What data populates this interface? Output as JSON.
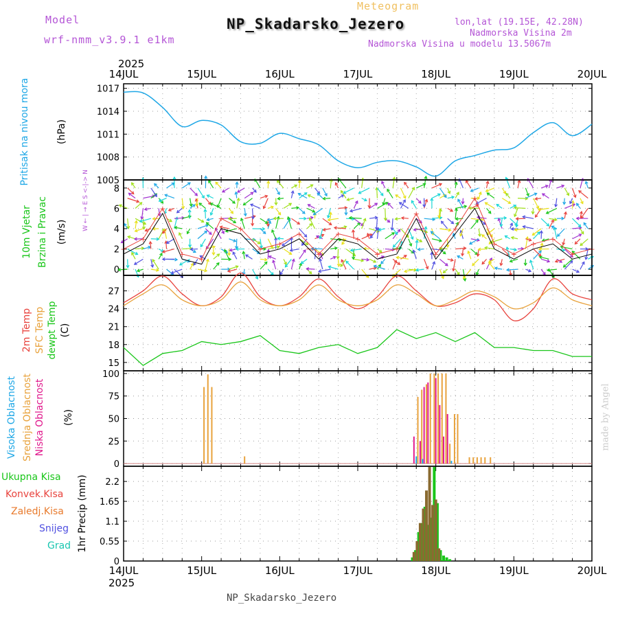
{
  "header": {
    "meteogram": "Meteogram",
    "station": "NP_Skadarsko_Jezero",
    "model_label": "Model",
    "model_name": "wrf-nmm_v3.9.1 e1km",
    "lonlat": "lon,lat (19.15E, 42.28N)",
    "elevation": "Nadmorska Visina 2m",
    "model_elevation": "Nadmorska Visina u modelu 13.5067m",
    "credit": "made by Angel",
    "footer": "NP_Skadarsko_Jezero"
  },
  "time_axis": {
    "year": "2025",
    "ticks": [
      "14JUL",
      "15JUL",
      "16JUL",
      "17JUL",
      "18JUL",
      "19JUL",
      "20JUL"
    ]
  },
  "colors": {
    "pressure": "#1ea7e6",
    "temp2m": "#e8423c",
    "sfctemp": "#e8a23c",
    "dewpt": "#19c619",
    "high_cloud": "#1ea7e6",
    "mid_cloud": "#e8a23c",
    "low_cloud": "#e0198c",
    "total_precip": "#19c619",
    "conv_precip": "#e8423c",
    "frozen_precip": "#e87a2c",
    "snow": "#5050e0",
    "hail": "#19c6b0"
  },
  "chart_data": [
    {
      "type": "line",
      "name": "pressure",
      "ylabel_main": "Pritisak na nivou mora",
      "ylabel_unit": "(hPa)",
      "ylim": [
        1005,
        1017.6
      ],
      "yticks": [
        1005,
        1008,
        1011,
        1014,
        1017
      ],
      "x": [
        0,
        0.25,
        0.5,
        0.75,
        1.0,
        1.25,
        1.5,
        1.75,
        2.0,
        2.25,
        2.5,
        2.75,
        3.0,
        3.25,
        3.5,
        3.75,
        4.0,
        4.25,
        4.5,
        4.75,
        5.0,
        5.25,
        5.5,
        5.75,
        6.0
      ],
      "values": [
        1016.5,
        1016.4,
        1014.5,
        1012.0,
        1012.8,
        1012.2,
        1010.0,
        1009.8,
        1011.1,
        1010.4,
        1009.6,
        1007.5,
        1006.6,
        1007.3,
        1007.5,
        1006.7,
        1005.5,
        1007.5,
        1008.2,
        1008.9,
        1009.2,
        1011.2,
        1012.5,
        1010.8,
        1012.3
      ]
    },
    {
      "type": "line",
      "name": "wind",
      "ylabel_main": "10m Vjetar",
      "ylabel_sub": "Brzina i Pravac",
      "ylabel_unit": "(m/s)",
      "compass": "W ← | → E   S <-|-> N",
      "ylim": [
        -0.6,
        8.8
      ],
      "yticks": [
        0,
        2,
        4,
        6,
        8
      ],
      "x": [
        0,
        0.25,
        0.5,
        0.75,
        1.0,
        1.25,
        1.5,
        1.75,
        2.0,
        2.25,
        2.5,
        2.75,
        3.0,
        3.25,
        3.5,
        3.75,
        4.0,
        4.25,
        4.5,
        4.75,
        5.0,
        5.25,
        5.5,
        5.75,
        6.0
      ],
      "speed": [
        1.5,
        2.5,
        5.5,
        1.0,
        0.5,
        4.0,
        3.5,
        1.5,
        2.0,
        3.0,
        1.0,
        3.0,
        2.5,
        1.0,
        1.5,
        5.0,
        1.0,
        3.5,
        6.0,
        2.0,
        1.0,
        2.0,
        2.5,
        1.0,
        1.5
      ],
      "gust": [
        2.0,
        3.0,
        6.0,
        1.5,
        1.0,
        5.0,
        4.0,
        2.0,
        2.5,
        3.5,
        1.5,
        3.5,
        3.0,
        1.5,
        2.0,
        5.5,
        1.5,
        4.0,
        7.0,
        2.5,
        1.5,
        2.5,
        3.0,
        1.5,
        2.0
      ]
    },
    {
      "type": "line",
      "name": "temperature",
      "ylabel_main": "2m Temp",
      "ylabel_sub": "SFC Temp",
      "ylabel_third": "dewpt Temp",
      "ylabel_unit": "(C)",
      "ylim": [
        13.6,
        29.6
      ],
      "yticks": [
        15,
        18,
        21,
        24,
        27
      ],
      "x": [
        0,
        0.25,
        0.5,
        0.75,
        1.0,
        1.25,
        1.5,
        1.75,
        2.0,
        2.25,
        2.5,
        2.75,
        3.0,
        3.25,
        3.5,
        3.75,
        4.0,
        4.25,
        4.5,
        4.75,
        5.0,
        5.25,
        5.5,
        5.75,
        6.0
      ],
      "series": [
        {
          "name": "2m Temp",
          "values": [
            25.0,
            27.0,
            29.5,
            26.5,
            24.5,
            26.0,
            30.0,
            26.0,
            24.5,
            26.0,
            29.0,
            26.0,
            24.0,
            26.0,
            29.5,
            27.0,
            24.5,
            25.0,
            26.5,
            25.5,
            22.0,
            24.0,
            29.0,
            26.5,
            25.5
          ]
        },
        {
          "name": "SFC Temp",
          "values": [
            24.5,
            26.5,
            28.0,
            25.5,
            24.5,
            25.5,
            28.5,
            25.5,
            24.5,
            25.5,
            28.0,
            25.5,
            24.5,
            25.5,
            28.0,
            26.5,
            24.5,
            25.5,
            27.0,
            26.0,
            24.0,
            25.0,
            27.5,
            25.5,
            24.5
          ]
        },
        {
          "name": "dewpt Temp",
          "values": [
            17.5,
            14.5,
            16.5,
            17.0,
            18.5,
            18.0,
            18.5,
            19.5,
            17.0,
            16.5,
            17.5,
            18.0,
            16.5,
            17.5,
            20.5,
            19.0,
            20.0,
            18.5,
            20.0,
            17.5,
            17.5,
            17.0,
            17.0,
            16.0,
            16.0
          ]
        }
      ]
    },
    {
      "type": "bar",
      "name": "cloud",
      "ylabel_main": "Visoka Oblacnost",
      "ylabel_sub": "Srednja Oblacnost",
      "ylabel_third": "Niska Oblacnost",
      "ylabel_unit": "(%)",
      "ylim": [
        -3,
        103
      ],
      "yticks": [
        0,
        25,
        50,
        75,
        100
      ],
      "series": [
        {
          "name": "Srednja Oblacnost",
          "x": [
            1.03,
            1.08,
            1.13,
            1.55,
            3.77,
            3.82,
            3.88,
            3.93,
            3.98,
            4.03,
            4.08,
            4.13,
            4.18,
            4.24,
            4.28,
            4.43,
            4.48,
            4.53,
            4.58,
            4.63,
            4.7
          ],
          "values": [
            85,
            99,
            85,
            8,
            74,
            82,
            88,
            100,
            100,
            100,
            100,
            100,
            22,
            55,
            55,
            7,
            7,
            7,
            7,
            7,
            7
          ]
        },
        {
          "name": "Niska Oblacnost",
          "x": [
            3.72,
            3.8,
            3.85,
            3.9,
            4.0,
            4.05,
            4.1,
            4.15
          ],
          "values": [
            30,
            25,
            85,
            90,
            95,
            65,
            30,
            55
          ]
        },
        {
          "name": "Visoka Oblacnost",
          "x": [
            3.75,
            3.83,
            4.2
          ],
          "values": [
            8,
            5,
            3
          ]
        }
      ]
    },
    {
      "type": "bar",
      "name": "precip",
      "ylabel_main": "1hr Precip (mm)",
      "legend": [
        "Ukupna Kisa",
        "Konvek.Kisa",
        "Zaledj.Kisa",
        "Snijeg",
        "Grad"
      ],
      "ylim": [
        0,
        2.62
      ],
      "yticks": [
        0,
        0.55,
        1.1,
        1.65,
        2.2
      ],
      "ytick_labels": [
        "0",
        "0.55",
        "1.1",
        "1.65",
        "2.2"
      ],
      "series": [
        {
          "name": "Ukupna Kisa",
          "x": [
            3.7,
            3.74,
            3.78,
            3.82,
            3.86,
            3.9,
            3.94,
            3.98,
            4.02,
            4.06,
            4.1,
            4.14,
            4.18
          ],
          "values": [
            0.1,
            0.3,
            0.8,
            1.05,
            1.5,
            1.0,
            1.2,
            2.6,
            1.6,
            0.3,
            0.15,
            0.1,
            0.05
          ]
        },
        {
          "name": "Konvek.Kisa",
          "x": [
            3.72,
            3.76,
            3.8,
            3.84,
            3.88,
            3.92,
            3.96,
            4.0,
            4.04
          ],
          "values": [
            0.25,
            0.55,
            1.05,
            1.45,
            1.95,
            2.6,
            1.55,
            1.7,
            0.35
          ]
        }
      ]
    }
  ]
}
